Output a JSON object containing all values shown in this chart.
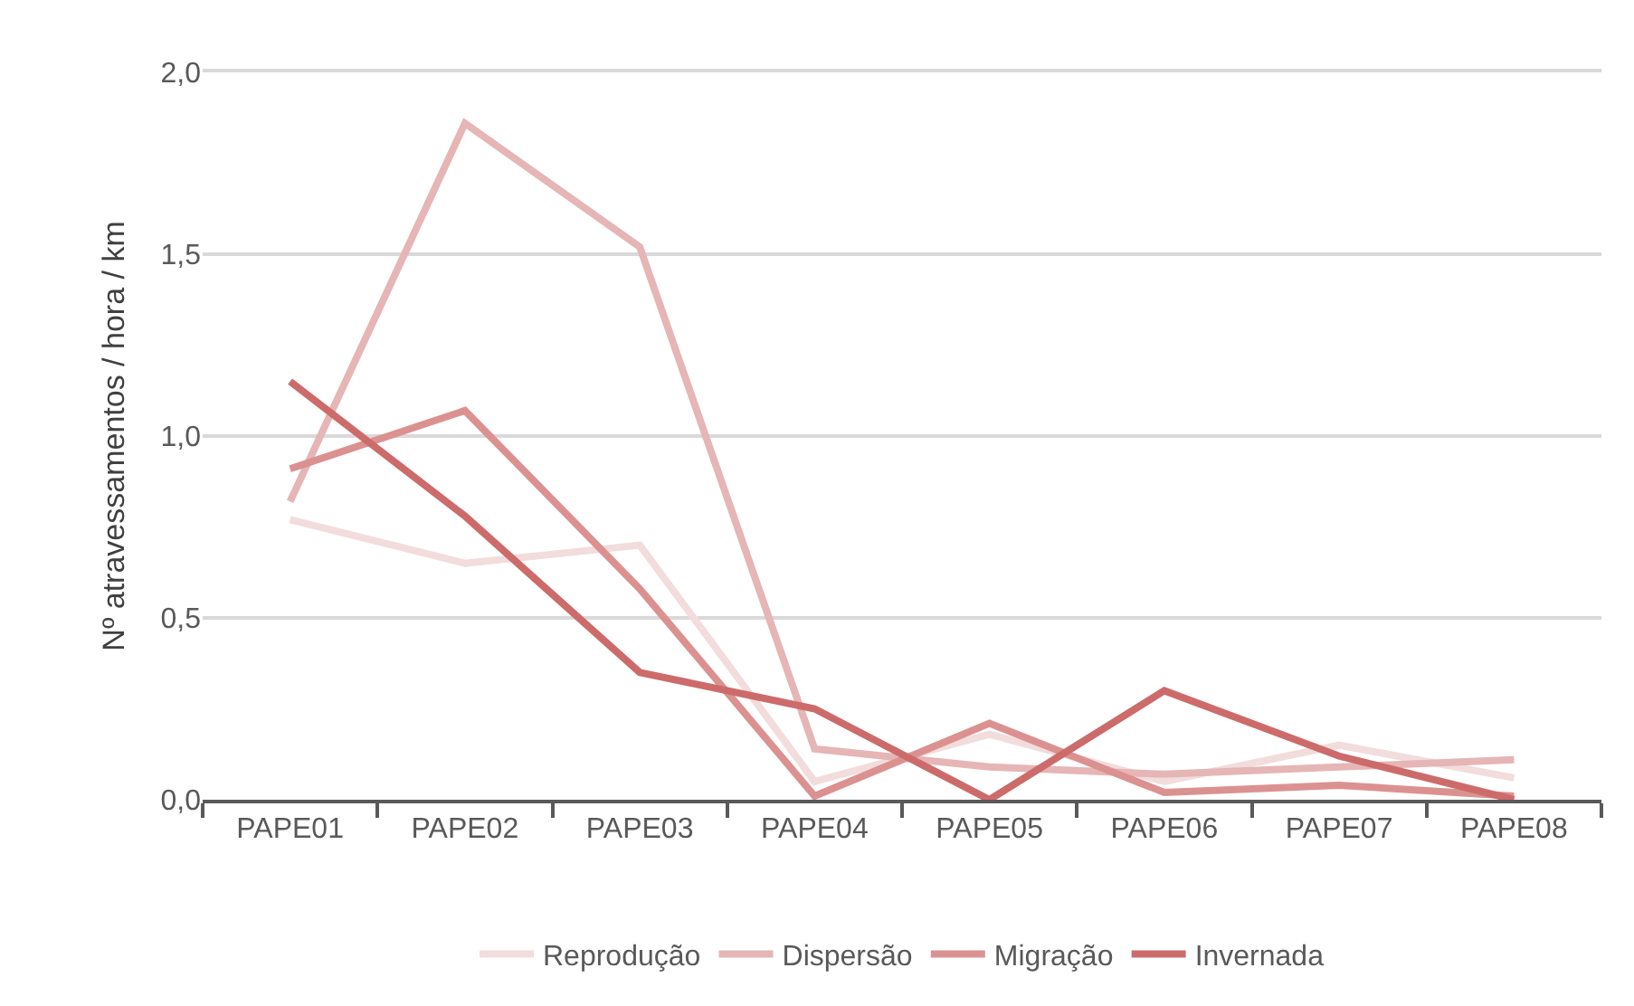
{
  "chart_data": {
    "type": "line",
    "ylabel": "Nº atravessamentos / hora / km",
    "categories": [
      "PAPE01",
      "PAPE02",
      "PAPE03",
      "PAPE04",
      "PAPE05",
      "PAPE06",
      "PAPE07",
      "PAPE08"
    ],
    "series": [
      {
        "name": "Reprodução",
        "color": "#f2dcdc",
        "values": [
          0.77,
          0.65,
          0.7,
          0.05,
          0.18,
          0.05,
          0.15,
          0.06
        ]
      },
      {
        "name": "Dispersão",
        "color": "#e6b5b5",
        "values": [
          0.82,
          1.86,
          1.52,
          0.14,
          0.09,
          0.07,
          0.09,
          0.11
        ]
      },
      {
        "name": "Migração",
        "color": "#dc9191",
        "values": [
          0.91,
          1.07,
          0.58,
          0.01,
          0.21,
          0.02,
          0.04,
          0.01
        ]
      },
      {
        "name": "Invernada",
        "color": "#cd6b6b",
        "values": [
          1.15,
          0.78,
          0.35,
          0.25,
          0.0,
          0.3,
          0.12,
          0.0
        ]
      }
    ],
    "ylim": [
      0,
      2
    ],
    "yticks": [
      {
        "value": 0,
        "label": "0,0"
      },
      {
        "value": 0.5,
        "label": "0,5"
      },
      {
        "value": 1,
        "label": "1,0"
      },
      {
        "value": 1.5,
        "label": "1,5"
      },
      {
        "value": 2,
        "label": "2,0"
      }
    ],
    "grid": "y",
    "legend": "bottom",
    "marker": "none",
    "line_style": "solid"
  }
}
